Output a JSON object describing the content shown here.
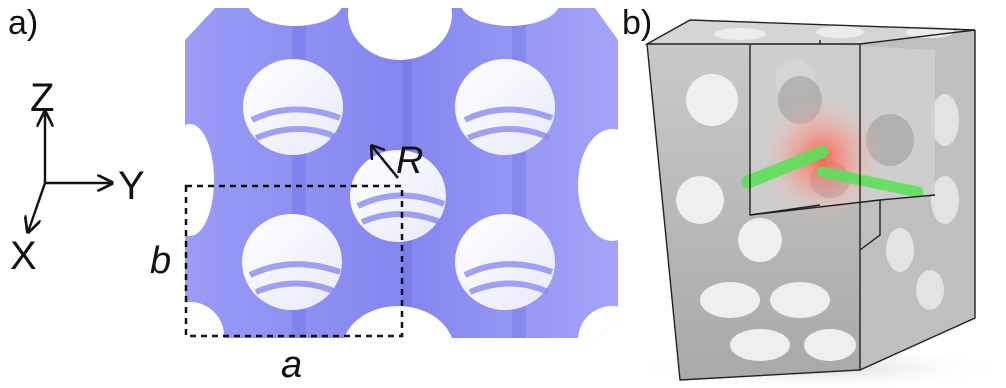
{
  "panel_a": {
    "label": "a)",
    "axes": {
      "z": "Z",
      "y": "Y",
      "x": "X"
    },
    "radius_label": "R",
    "width_label": "a",
    "height_label": "b",
    "color": "#8a8cf2"
  },
  "panel_b": {
    "label": "b)",
    "glow_color": "#ff6a5a",
    "rod_color": "#5ee05a"
  }
}
